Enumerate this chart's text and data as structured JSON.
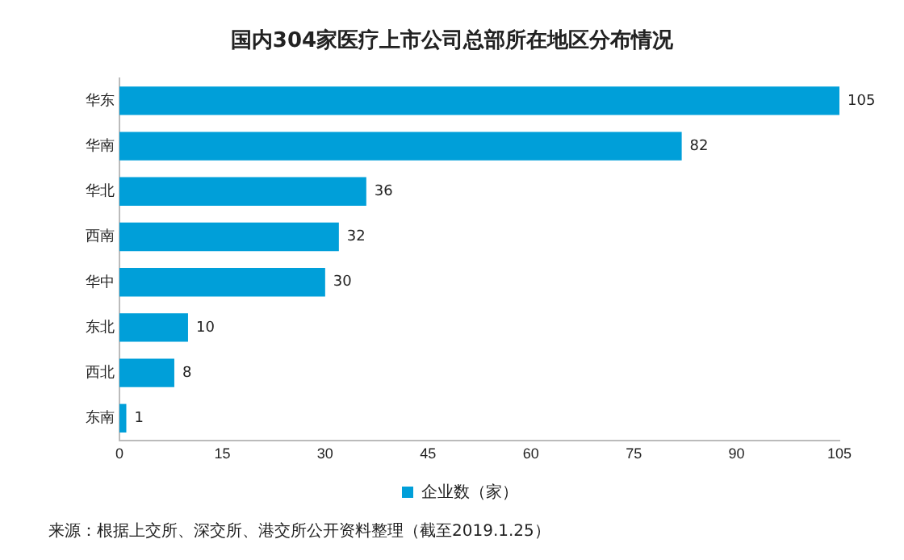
{
  "chart_data": {
    "type": "bar",
    "orientation": "horizontal",
    "title": "国内304家医疗上市公司总部所在地区分布情况",
    "categories": [
      "华东",
      "华南",
      "华北",
      "西南",
      "华中",
      "东北",
      "西北",
      "东南"
    ],
    "series": [
      {
        "name": "企业数（家）",
        "color": "#009fd9",
        "values": [
          105,
          82,
          36,
          32,
          30,
          10,
          8,
          1
        ]
      }
    ],
    "xlim": [
      0,
      105
    ],
    "xticks": [
      0,
      15,
      30,
      45,
      60,
      75,
      90,
      105
    ],
    "grid": false,
    "legend": "bottom",
    "data_labels": true,
    "annotations": [
      "来源：根据上交所、深交所、港交所公开资料整理（截至2019.1.25）"
    ]
  }
}
